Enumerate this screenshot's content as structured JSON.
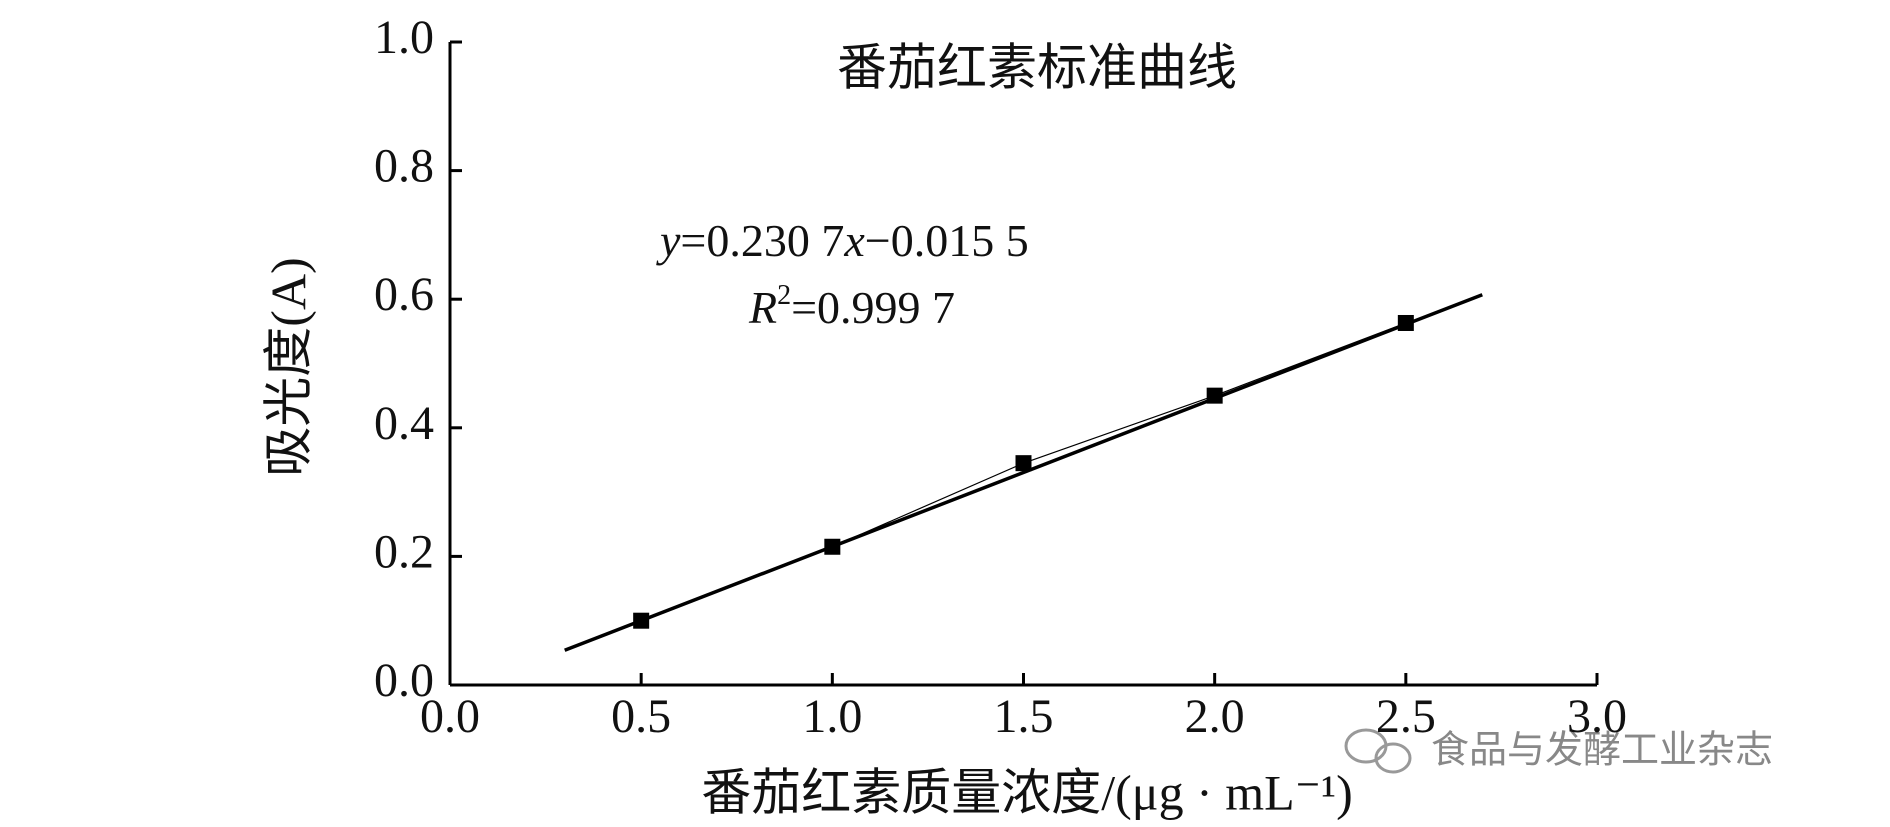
{
  "chart_data": {
    "type": "scatter",
    "title": "番茄红素标准曲线",
    "x_label": "番茄红素质量浓度/(μg · mL⁻¹)",
    "y_label": "吸光度(A)",
    "equation": [
      "y",
      "=0.230 7",
      "x",
      "−0.015 5"
    ],
    "r2": [
      "R",
      "2",
      "=0.999 7"
    ],
    "x": [
      0.5,
      1.0,
      1.5,
      2.0,
      2.5
    ],
    "series": [
      {
        "color": "#000000",
        "values": [
          0.1,
          0.215,
          0.345,
          0.45,
          0.563
        ]
      }
    ],
    "fit": {
      "x": [
        0.3,
        2.7
      ],
      "values": [
        0.054,
        0.607
      ],
      "color": "#000000"
    },
    "xlim": [
      0,
      3.0
    ],
    "ylim": [
      0,
      1.0
    ],
    "xticks": [
      {
        "value": 0,
        "label": "0.0"
      },
      {
        "value": 0.5,
        "label": "0.5"
      },
      {
        "value": 1,
        "label": "1.0"
      },
      {
        "value": 1.5,
        "label": "1.5"
      },
      {
        "value": 2,
        "label": "2.0"
      },
      {
        "value": 2.5,
        "label": "2.5"
      },
      {
        "value": 3,
        "label": "3.0"
      }
    ],
    "yticks": [
      {
        "value": 0,
        "label": "0.0"
      },
      {
        "value": 0.2,
        "label": "0.2"
      },
      {
        "value": 0.4,
        "label": "0.4"
      },
      {
        "value": 0.6,
        "label": "0.6"
      },
      {
        "value": 0.8,
        "label": "0.8"
      },
      {
        "value": 1,
        "label": "1.0"
      }
    ],
    "grid": false
  },
  "watermark": "食品与发酵工业杂志"
}
